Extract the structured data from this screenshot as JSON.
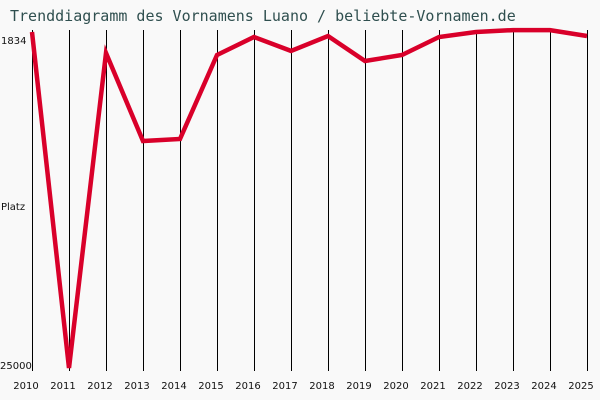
{
  "chart_data": {
    "type": "line",
    "title": "Trenddiagramm des Vornamens Luano / beliebte-Vornamen.de",
    "xlabel": "",
    "ylabel": "Platz",
    "y_axis_inverted": true,
    "ylim": [
      1834,
      25000
    ],
    "y_tick_labels": [
      "1834",
      "25000"
    ],
    "x": [
      "2010",
      "2011",
      "2012",
      "2013",
      "2014",
      "2015",
      "2016",
      "2017",
      "2018",
      "2019",
      "2020",
      "2021",
      "2022",
      "2023",
      "2024",
      "2025"
    ],
    "series": [
      {
        "name": "Luano",
        "color": "#d9002a",
        "values": [
          1834,
          25000,
          3280,
          9350,
          9210,
          3420,
          2180,
          3140,
          2110,
          3830,
          3420,
          2180,
          1834,
          1700,
          1700,
          2110
        ]
      }
    ],
    "grid": {
      "vertical": true,
      "horizontal": false
    },
    "legend": null
  },
  "labels": {
    "title": "Trenddiagramm des Vornamens Luano / beliebte-Vornamen.de",
    "y_top": "1834",
    "y_mid": "Platz",
    "y_bottom": "25000"
  }
}
